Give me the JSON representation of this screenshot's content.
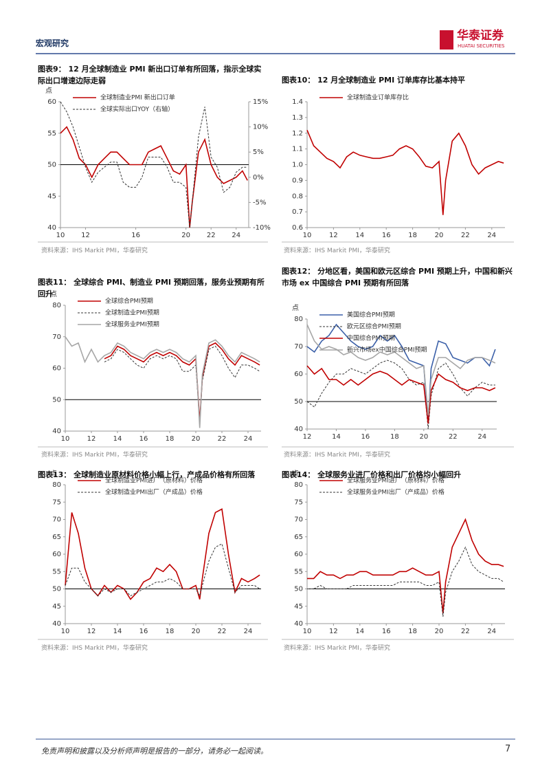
{
  "header": {
    "section": "宏观研究",
    "logo_name": "华泰证券",
    "logo_sub": "HUATAI SECURITIES"
  },
  "footer": {
    "disclaimer": "免责声明和披露以及分析师声明是报告的一部分，请务必一起阅读。",
    "page": "7"
  },
  "chart_data": [
    {
      "type": "line",
      "title": "图表9：  12 月全球制造业 PMI 新出口订单有所回落，指示全球实际出口增速边际走弱",
      "unit_label": "点",
      "source": "资料来源：IHS Markit PMI，华泰研究",
      "x": [
        2010,
        2010.5,
        2011,
        2011.5,
        2012,
        2012.5,
        2013,
        2013.5,
        2014,
        2014.5,
        2015,
        2015.5,
        2016,
        2016.5,
        2017,
        2017.5,
        2018,
        2018.5,
        2019,
        2019.5,
        2020,
        2020.3,
        2020.5,
        2021,
        2021.5,
        2022,
        2022.5,
        2023,
        2023.5,
        2024,
        2024.5,
        2024.9
      ],
      "xlim": [
        2010,
        2025
      ],
      "xticks": [
        {
          "value": 2010,
          "label": "10"
        },
        {
          "value": 2012,
          "label": "12"
        },
        {
          "value": 2016,
          "label": "16"
        },
        {
          "value": 2020,
          "label": "20"
        },
        {
          "value": 2022,
          "label": "22"
        },
        {
          "value": 2024,
          "label": "24"
        }
      ],
      "ylim": [
        40,
        60
      ],
      "yticks": [
        40,
        45,
        50,
        55,
        60
      ],
      "y2lim": [
        -10,
        15
      ],
      "y2ticks": [
        {
          "value": -10,
          "label": "-10%"
        },
        {
          "value": -5,
          "label": "-5%"
        },
        {
          "value": 0,
          "label": "0%"
        },
        {
          "value": 5,
          "label": "5%"
        },
        {
          "value": 10,
          "label": "10%"
        },
        {
          "value": 15,
          "label": "15%"
        }
      ],
      "ref_line": 50,
      "legend": "top-left",
      "series": [
        {
          "name": "全球制造业PMI 新出口订单",
          "color": "#c00000",
          "values": [
            55,
            56,
            54,
            51,
            50,
            48,
            50,
            51,
            52,
            52,
            51,
            50,
            50,
            50,
            52,
            52.5,
            53,
            51,
            49,
            48.5,
            50,
            40,
            44,
            52,
            54,
            50,
            48,
            47,
            47.5,
            48,
            49,
            47.5
          ]
        },
        {
          "name": "全球实际出口YOY（右轴）",
          "color": "#333333",
          "dash": true,
          "axis": "y2",
          "values": [
            15,
            13,
            10,
            6,
            2,
            -1,
            1,
            2,
            3,
            3,
            -1,
            -2,
            -2,
            0,
            4,
            4,
            4,
            2,
            -1,
            -1,
            -2,
            -10,
            -5,
            8,
            14,
            4,
            2,
            -3,
            -2,
            1,
            2,
            2
          ]
        }
      ]
    },
    {
      "type": "line",
      "title": "图表10：  12 月全球制造业 PMI 订单库存比基本持平",
      "source": "资料来源：IHS Markit PMI，华泰研究",
      "x": [
        2010,
        2010.5,
        2011,
        2011.5,
        2012,
        2012.5,
        2013,
        2013.5,
        2014,
        2014.5,
        2015,
        2015.5,
        2016,
        2016.5,
        2017,
        2017.5,
        2018,
        2018.5,
        2019,
        2019.5,
        2020,
        2020.3,
        2020.5,
        2021,
        2021.5,
        2022,
        2022.5,
        2023,
        2023.5,
        2024,
        2024.5,
        2024.9
      ],
      "xlim": [
        2010,
        2025
      ],
      "xticks": [
        {
          "value": 2010,
          "label": "10"
        },
        {
          "value": 2012,
          "label": "12"
        },
        {
          "value": 2014,
          "label": "14"
        },
        {
          "value": 2016,
          "label": "16"
        },
        {
          "value": 2018,
          "label": "18"
        },
        {
          "value": 2020,
          "label": "20"
        },
        {
          "value": 2022,
          "label": "22"
        },
        {
          "value": 2024,
          "label": "24"
        }
      ],
      "ylim": [
        0.6,
        1.4
      ],
      "yticks": [
        0.6,
        0.7,
        0.8,
        0.9,
        {
          "value": 1,
          "label": "1.0"
        },
        1.1,
        1.2,
        1.3,
        1.4
      ],
      "legend": "top-left",
      "series": [
        {
          "name": "全球制造业订单库存比",
          "color": "#c00000",
          "values": [
            1.22,
            1.12,
            1.08,
            1.04,
            1.02,
            0.98,
            1.05,
            1.08,
            1.06,
            1.05,
            1.04,
            1.04,
            1.05,
            1.06,
            1.1,
            1.12,
            1.1,
            1.05,
            0.99,
            0.98,
            1.02,
            0.68,
            0.9,
            1.15,
            1.2,
            1.12,
            1.0,
            0.94,
            0.98,
            1.0,
            1.02,
            1.01
          ]
        }
      ]
    },
    {
      "type": "line",
      "title": "图表11：  全球综合 PMI、制造业 PMI 预期回落，服务业预期有所回升",
      "unit_label": "点",
      "source": "资料来源：IHS Markit PMI，华泰研究",
      "x": [
        2010,
        2010.5,
        2011,
        2011.5,
        2012,
        2012.5,
        2013,
        2013.5,
        2014,
        2014.5,
        2015,
        2015.5,
        2016,
        2016.5,
        2017,
        2017.5,
        2018,
        2018.5,
        2019,
        2019.5,
        2020,
        2020.3,
        2020.5,
        2021,
        2021.5,
        2022,
        2022.5,
        2023,
        2023.5,
        2024,
        2024.5,
        2024.9
      ],
      "xlim": [
        2010,
        2025
      ],
      "xticks": [
        {
          "value": 2010,
          "label": "10"
        },
        {
          "value": 2012,
          "label": "12"
        },
        {
          "value": 2014,
          "label": "14"
        },
        {
          "value": 2016,
          "label": "16"
        },
        {
          "value": 2018,
          "label": "18"
        },
        {
          "value": 2020,
          "label": "20"
        },
        {
          "value": 2022,
          "label": "22"
        },
        {
          "value": 2024,
          "label": "24"
        }
      ],
      "ylim": [
        40,
        80
      ],
      "yticks": [
        40,
        50,
        60,
        70,
        80
      ],
      "ref_line": 50,
      "legend": "top-left",
      "series": [
        {
          "name": "全球综合PMI预期",
          "color": "#c00000",
          "values": [
            null,
            null,
            null,
            null,
            null,
            null,
            63,
            64,
            67,
            66,
            64,
            63,
            62,
            64,
            65,
            64,
            65,
            64,
            62,
            61,
            63,
            43,
            57,
            67,
            68,
            66,
            63,
            61,
            64,
            63,
            62,
            61
          ]
        },
        {
          "name": "全球制造业PMI预期",
          "color": "#333333",
          "dash": true,
          "values": [
            null,
            null,
            null,
            null,
            null,
            null,
            62,
            63,
            66,
            65,
            63,
            61,
            60,
            63,
            64,
            63,
            64,
            63,
            59,
            59,
            61,
            42,
            56,
            66,
            67,
            64,
            60,
            57,
            61,
            61,
            60,
            59
          ]
        },
        {
          "name": "全球服务业PMI预期",
          "color": "#a6a6a6",
          "values": [
            70,
            67,
            68,
            62,
            66,
            62,
            64,
            65,
            68,
            67,
            65,
            64,
            63,
            65,
            66,
            65,
            66,
            65,
            63,
            62,
            64,
            41,
            58,
            68,
            69,
            67,
            64,
            62,
            65,
            64,
            63,
            62
          ]
        }
      ]
    },
    {
      "type": "line",
      "title": "图表12：  分地区看，美国和欧元区综合 PMI 预期上升，中国和新兴市场 ex 中国综合 PMI 预期有所回落",
      "unit_label": "点",
      "source": "资料来源：IHS Markit PMI，华泰研究",
      "x": [
        2012,
        2012.5,
        2013,
        2013.5,
        2014,
        2014.5,
        2015,
        2015.5,
        2016,
        2016.5,
        2017,
        2017.5,
        2018,
        2018.5,
        2019,
        2019.5,
        2020,
        2020.3,
        2020.5,
        2021,
        2021.5,
        2022,
        2022.5,
        2023,
        2023.5,
        2024,
        2024.5,
        2024.9
      ],
      "xlim": [
        2012,
        2025
      ],
      "xticks": [
        {
          "value": 2012,
          "label": "12"
        },
        {
          "value": 2014,
          "label": "14"
        },
        {
          "value": 2016,
          "label": "16"
        },
        {
          "value": 2018,
          "label": "18"
        },
        {
          "value": 2020,
          "label": "20"
        },
        {
          "value": 2022,
          "label": "22"
        },
        {
          "value": 2024,
          "label": "24"
        }
      ],
      "ylim": [
        40,
        80
      ],
      "yticks": [
        40,
        50,
        60,
        70,
        80
      ],
      "ref_line": 50,
      "legend": "top-left",
      "series": [
        {
          "name": "美国综合PMI预期",
          "color": "#3a5fa8",
          "values": [
            70,
            68,
            72,
            74,
            78,
            75,
            72,
            70,
            69,
            70,
            74,
            72,
            74,
            70,
            65,
            64,
            63,
            42,
            62,
            72,
            71,
            66,
            65,
            64,
            66,
            66,
            63,
            69
          ]
        },
        {
          "name": "欧元区综合PMI预期",
          "color": "#333333",
          "dash": true,
          "values": [
            50,
            48,
            53,
            57,
            60,
            60,
            62,
            61,
            60,
            62,
            64,
            65,
            64,
            62,
            58,
            56,
            57,
            40,
            52,
            62,
            64,
            60,
            55,
            52,
            55,
            57,
            56,
            56
          ]
        },
        {
          "name": "中国综合PMI预期",
          "color": "#c00000",
          "values": [
            63,
            60,
            62,
            58,
            58,
            56,
            58,
            56,
            58,
            60,
            61,
            60,
            58,
            56,
            58,
            57,
            56,
            42,
            54,
            60,
            58,
            57,
            55,
            54,
            55,
            55,
            54,
            55
          ]
        },
        {
          "name": "新兴市场ex中国综合PMI预期",
          "color": "#a6a6a6",
          "values": [
            78,
            72,
            69,
            70,
            69,
            67,
            68,
            66,
            65,
            66,
            68,
            67,
            68,
            66,
            64,
            62,
            63,
            45,
            58,
            66,
            66,
            64,
            62,
            65,
            66,
            66,
            65,
            64
          ]
        }
      ]
    },
    {
      "type": "line",
      "title": "图表13：  全球制造业原材料价格小幅上行，产成品价格有所回落",
      "unit_label": "点",
      "source": "资料来源：IHS Markit PMI，华泰研究",
      "x": [
        2010,
        2010.5,
        2011,
        2011.5,
        2012,
        2012.5,
        2013,
        2013.5,
        2014,
        2014.5,
        2015,
        2015.5,
        2016,
        2016.5,
        2017,
        2017.5,
        2018,
        2018.5,
        2019,
        2019.5,
        2020,
        2020.3,
        2020.5,
        2021,
        2021.5,
        2022,
        2022.5,
        2023,
        2023.5,
        2024,
        2024.5,
        2024.9
      ],
      "xlim": [
        2010,
        2025
      ],
      "xticks": [
        {
          "value": 2010,
          "label": "10"
        },
        {
          "value": 2012,
          "label": "12"
        },
        {
          "value": 2014,
          "label": "14"
        },
        {
          "value": 2016,
          "label": "16"
        },
        {
          "value": 2018,
          "label": "18"
        },
        {
          "value": 2020,
          "label": "20"
        },
        {
          "value": 2022,
          "label": "22"
        },
        {
          "value": 2024,
          "label": "24"
        }
      ],
      "ylim": [
        40,
        80
      ],
      "yticks": [
        40,
        45,
        50,
        55,
        60,
        65,
        70,
        75,
        80
      ],
      "ref_line": 50,
      "legend": "top-left",
      "series": [
        {
          "name": "全球制造业PMI进厂（原材料）价格",
          "color": "#c00000",
          "values": [
            51,
            72,
            66,
            56,
            50,
            48,
            51,
            49,
            51,
            50,
            47,
            49,
            52,
            53,
            56,
            55,
            57,
            55,
            50,
            50,
            51,
            47,
            53,
            66,
            72,
            73,
            60,
            49,
            53,
            52,
            53,
            54
          ]
        },
        {
          "name": "全球制造业PMI出厂（产成品）价格",
          "color": "#333333",
          "dash": true,
          "values": [
            51,
            56,
            56,
            52,
            50,
            48,
            50,
            49,
            50,
            50,
            48,
            49,
            50,
            51,
            52,
            52,
            53,
            52,
            50,
            50,
            50,
            48,
            51,
            58,
            62,
            63,
            56,
            49,
            51,
            51,
            51,
            50
          ]
        }
      ]
    },
    {
      "type": "line",
      "title": "图表14：  全球服务业进厂价格和出厂价格均小幅回升",
      "unit_label": "点",
      "source": "资料来源：IHS Markit PMI，华泰研究",
      "x": [
        2010,
        2010.5,
        2011,
        2011.5,
        2012,
        2012.5,
        2013,
        2013.5,
        2014,
        2014.5,
        2015,
        2015.5,
        2016,
        2016.5,
        2017,
        2017.5,
        2018,
        2018.5,
        2019,
        2019.5,
        2020,
        2020.3,
        2020.5,
        2021,
        2021.5,
        2022,
        2022.5,
        2023,
        2023.5,
        2024,
        2024.5,
        2024.9
      ],
      "xlim": [
        2010,
        2025
      ],
      "xticks": [
        {
          "value": 2010,
          "label": "10"
        },
        {
          "value": 2012,
          "label": "12"
        },
        {
          "value": 2014,
          "label": "14"
        },
        {
          "value": 2016,
          "label": "16"
        },
        {
          "value": 2018,
          "label": "18"
        },
        {
          "value": 2020,
          "label": "20"
        },
        {
          "value": 2022,
          "label": "22"
        },
        {
          "value": 2024,
          "label": "24"
        }
      ],
      "ylim": [
        40,
        80
      ],
      "yticks": [
        40,
        45,
        50,
        55,
        60,
        65,
        70,
        75,
        80
      ],
      "ref_line": 50,
      "legend": "top-left",
      "series": [
        {
          "name": "全球服务业PMI进厂（原材料）价格",
          "color": "#c00000",
          "values": [
            53,
            53,
            55,
            54,
            54,
            53,
            54,
            54,
            55,
            55,
            54,
            54,
            54,
            54,
            55,
            55,
            56,
            55,
            54,
            54,
            55,
            43,
            52,
            62,
            66,
            70,
            64,
            60,
            58,
            57,
            57,
            56.5
          ]
        },
        {
          "name": "全球服务业PMI出厂（产成品）价格",
          "color": "#333333",
          "dash": true,
          "values": [
            50,
            50,
            51,
            50,
            50,
            50,
            50,
            51,
            51,
            51,
            51,
            51,
            51,
            51,
            52,
            52,
            52,
            52,
            51,
            51,
            52,
            42,
            49,
            55,
            58,
            62,
            57,
            55,
            54,
            53,
            53,
            52
          ]
        }
      ]
    }
  ]
}
